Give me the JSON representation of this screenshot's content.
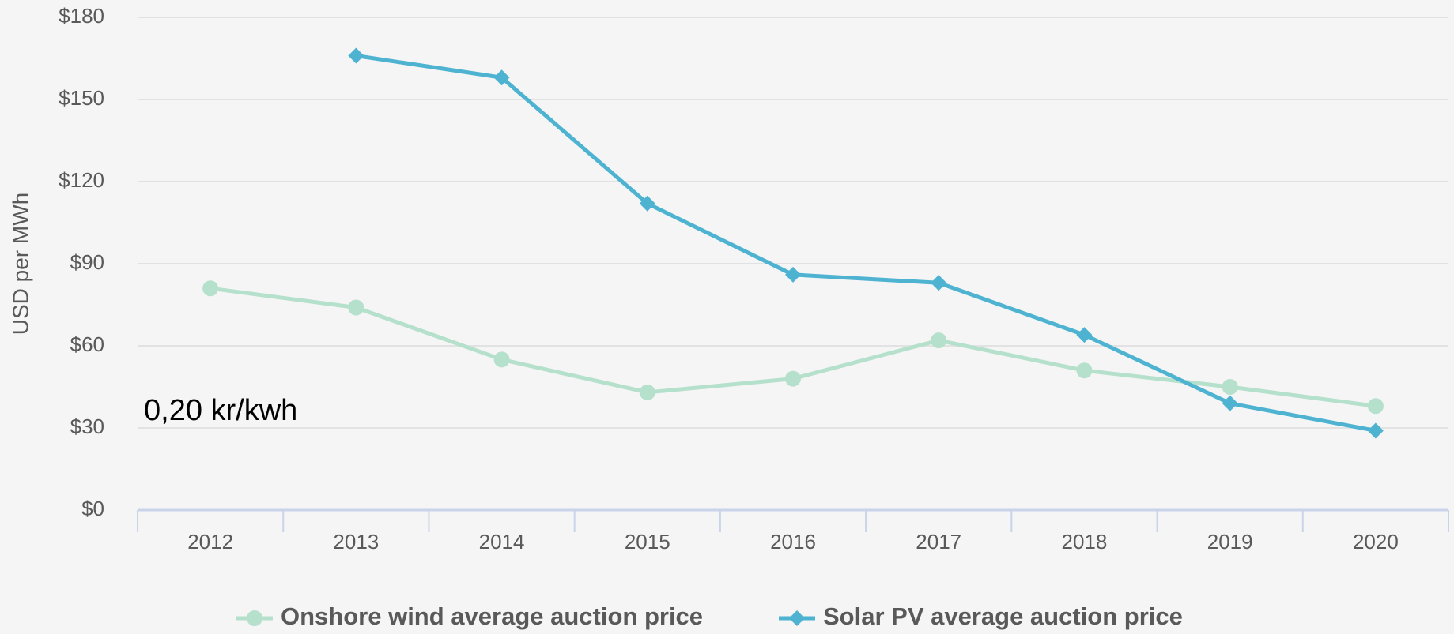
{
  "chart_data": {
    "type": "line",
    "y_label": "USD per MWh",
    "annotation": "0,20 kr/kwh",
    "categories": [
      "2012",
      "2013",
      "2014",
      "2015",
      "2016",
      "2017",
      "2018",
      "2019",
      "2020"
    ],
    "series": [
      {
        "name": "Onshore wind average auction price",
        "color": "#b5e0cc",
        "marker": "circle",
        "values": [
          81,
          74,
          55,
          43,
          48,
          62,
          51,
          45,
          38
        ]
      },
      {
        "name": "Solar PV average auction price",
        "color": "#4db3d1",
        "marker": "diamond",
        "values": [
          null,
          166,
          158,
          112,
          86,
          83,
          64,
          39,
          29
        ]
      }
    ],
    "ylim": [
      0,
      180
    ],
    "yticks": [
      {
        "value": 0,
        "label": "$0"
      },
      {
        "value": 30,
        "label": "$30"
      },
      {
        "value": 60,
        "label": "$60"
      },
      {
        "value": 90,
        "label": "$90"
      },
      {
        "value": 120,
        "label": "$120"
      },
      {
        "value": 150,
        "label": "$150"
      },
      {
        "value": 180,
        "label": "$180"
      }
    ],
    "grid": true,
    "legend": "bottom"
  }
}
